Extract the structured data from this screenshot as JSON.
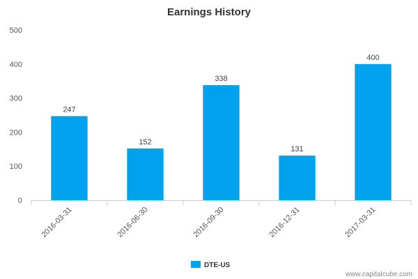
{
  "chart_data": {
    "type": "bar",
    "title": "Earnings History",
    "categories": [
      "2016-03-31",
      "2016-06-30",
      "2016-09-30",
      "2016-12-31",
      "2017-03-31"
    ],
    "series": [
      {
        "name": "DTE-US",
        "values": [
          247,
          152,
          338,
          131,
          400
        ],
        "color": "#00a2ed"
      }
    ],
    "data_labels": [
      "247",
      "152",
      "338",
      "131",
      "400"
    ],
    "ylim": [
      0,
      500
    ],
    "yticks": [
      0,
      100,
      200,
      300,
      400,
      500
    ],
    "grid": false,
    "legend": "bottom-center",
    "xlabel": "",
    "ylabel": ""
  },
  "footer": {
    "watermark": "www.capitalcube.com"
  },
  "colors": {
    "bar": "#00a2ed",
    "axis": "#c0d0e0"
  }
}
